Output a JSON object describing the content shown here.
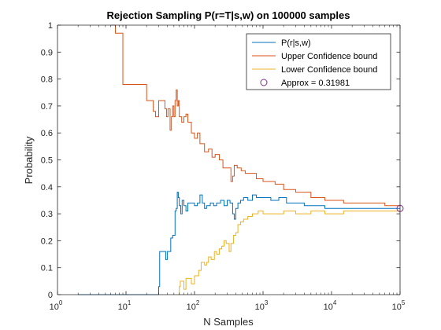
{
  "chart_data": {
    "type": "line",
    "title": "Rejection Sampling P(r=T|s,w) on 100000 samples",
    "xlabel": "N Samples",
    "ylabel": "Probability",
    "xscale": "log",
    "xlim": [
      1,
      100000
    ],
    "ylim": [
      0,
      1
    ],
    "grid": false,
    "legend_position": "top-right",
    "x_ticks": [
      {
        "value": 1,
        "base": "10",
        "exp": "0"
      },
      {
        "value": 10,
        "base": "10",
        "exp": "1"
      },
      {
        "value": 100,
        "base": "10",
        "exp": "2"
      },
      {
        "value": 1000,
        "base": "10",
        "exp": "3"
      },
      {
        "value": 10000,
        "base": "10",
        "exp": "4"
      },
      {
        "value": 100000,
        "base": "10",
        "exp": "5"
      }
    ],
    "y_ticks": [
      {
        "value": 0,
        "label": "0"
      },
      {
        "value": 0.1,
        "label": "0.1"
      },
      {
        "value": 0.2,
        "label": "0.2"
      },
      {
        "value": 0.3,
        "label": "0.3"
      },
      {
        "value": 0.4,
        "label": "0.4"
      },
      {
        "value": 0.5,
        "label": "0.5"
      },
      {
        "value": 0.6,
        "label": "0.6"
      },
      {
        "value": 0.7,
        "label": "0.7"
      },
      {
        "value": 0.8,
        "label": "0.8"
      },
      {
        "value": 0.9,
        "label": "0.9"
      },
      {
        "value": 1,
        "label": "1"
      }
    ],
    "series": [
      {
        "name": "P(r|s,w)",
        "color": "#0072BD",
        "step": true,
        "points": [
          [
            2,
            0
          ],
          [
            28,
            0
          ],
          [
            30,
            0.03
          ],
          [
            31,
            0.16
          ],
          [
            36,
            0.16
          ],
          [
            38,
            0.13
          ],
          [
            40,
            0.16
          ],
          [
            45,
            0.21
          ],
          [
            48,
            0.22
          ],
          [
            52,
            0.31
          ],
          [
            54,
            0.32
          ],
          [
            56,
            0.38
          ],
          [
            58,
            0.36
          ],
          [
            60,
            0.33
          ],
          [
            63,
            0.3
          ],
          [
            66,
            0.35
          ],
          [
            70,
            0.33
          ],
          [
            75,
            0.31
          ],
          [
            80,
            0.34
          ],
          [
            90,
            0.34
          ],
          [
            100,
            0.33
          ],
          [
            110,
            0.34
          ],
          [
            120,
            0.37
          ],
          [
            130,
            0.34
          ],
          [
            140,
            0.32
          ],
          [
            150,
            0.33
          ],
          [
            170,
            0.34
          ],
          [
            190,
            0.33
          ],
          [
            210,
            0.34
          ],
          [
            240,
            0.35
          ],
          [
            270,
            0.33
          ],
          [
            300,
            0.35
          ],
          [
            330,
            0.34
          ],
          [
            360,
            0.3
          ],
          [
            380,
            0.28
          ],
          [
            400,
            0.32
          ],
          [
            430,
            0.34
          ],
          [
            470,
            0.35
          ],
          [
            520,
            0.36
          ],
          [
            600,
            0.35
          ],
          [
            700,
            0.37
          ],
          [
            800,
            0.36
          ],
          [
            1000,
            0.36
          ],
          [
            1300,
            0.35
          ],
          [
            1700,
            0.36
          ],
          [
            2200,
            0.34
          ],
          [
            3000,
            0.34
          ],
          [
            4000,
            0.33
          ],
          [
            6000,
            0.33
          ],
          [
            8000,
            0.32
          ],
          [
            12000,
            0.32
          ],
          [
            20000,
            0.32
          ],
          [
            35000,
            0.32
          ],
          [
            60000,
            0.32
          ],
          [
            100000,
            0.32
          ]
        ]
      },
      {
        "name": "Upper Confidence bound",
        "color": "#D95319",
        "step": true,
        "points": [
          [
            6,
            1
          ],
          [
            7,
            0.97
          ],
          [
            8,
            0.97
          ],
          [
            9,
            0.78
          ],
          [
            10,
            0.78
          ],
          [
            18,
            0.78
          ],
          [
            20,
            0.72
          ],
          [
            24,
            0.72
          ],
          [
            25,
            0.68
          ],
          [
            27,
            0.66
          ],
          [
            30,
            0.72
          ],
          [
            35,
            0.72
          ],
          [
            37,
            0.69
          ],
          [
            39,
            0.66
          ],
          [
            41,
            0.69
          ],
          [
            44,
            0.61
          ],
          [
            46,
            0.66
          ],
          [
            48,
            0.7
          ],
          [
            50,
            0.66
          ],
          [
            52,
            0.72
          ],
          [
            54,
            0.76
          ],
          [
            56,
            0.7
          ],
          [
            58,
            0.72
          ],
          [
            60,
            0.66
          ],
          [
            65,
            0.64
          ],
          [
            70,
            0.66
          ],
          [
            75,
            0.67
          ],
          [
            80,
            0.64
          ],
          [
            90,
            0.6
          ],
          [
            100,
            0.58
          ],
          [
            110,
            0.6
          ],
          [
            120,
            0.56
          ],
          [
            140,
            0.53
          ],
          [
            160,
            0.54
          ],
          [
            180,
            0.51
          ],
          [
            200,
            0.52
          ],
          [
            230,
            0.5
          ],
          [
            260,
            0.47
          ],
          [
            300,
            0.47
          ],
          [
            340,
            0.42
          ],
          [
            360,
            0.44
          ],
          [
            380,
            0.48
          ],
          [
            420,
            0.47
          ],
          [
            480,
            0.46
          ],
          [
            550,
            0.45
          ],
          [
            650,
            0.45
          ],
          [
            800,
            0.43
          ],
          [
            1000,
            0.42
          ],
          [
            1500,
            0.41
          ],
          [
            2000,
            0.39
          ],
          [
            3000,
            0.38
          ],
          [
            5000,
            0.36
          ],
          [
            8000,
            0.35
          ],
          [
            15000,
            0.34
          ],
          [
            30000,
            0.34
          ],
          [
            60000,
            0.33
          ],
          [
            100000,
            0.33
          ]
        ]
      },
      {
        "name": "Lower Confidence bound",
        "color": "#EDB120",
        "step": true,
        "points": [
          [
            58,
            0
          ],
          [
            60,
            0.03
          ],
          [
            62,
            0.05
          ],
          [
            70,
            0.02
          ],
          [
            75,
            0.06
          ],
          [
            85,
            0.06
          ],
          [
            90,
            0.04
          ],
          [
            100,
            0.07
          ],
          [
            115,
            0.09
          ],
          [
            125,
            0.12
          ],
          [
            140,
            0.11
          ],
          [
            150,
            0.12
          ],
          [
            160,
            0.14
          ],
          [
            175,
            0.13
          ],
          [
            195,
            0.16
          ],
          [
            210,
            0.15
          ],
          [
            230,
            0.17
          ],
          [
            250,
            0.18
          ],
          [
            270,
            0.2
          ],
          [
            290,
            0.19
          ],
          [
            320,
            0.16
          ],
          [
            340,
            0.19
          ],
          [
            370,
            0.22
          ],
          [
            400,
            0.23
          ],
          [
            430,
            0.26
          ],
          [
            470,
            0.27
          ],
          [
            520,
            0.28
          ],
          [
            600,
            0.29
          ],
          [
            700,
            0.3
          ],
          [
            850,
            0.31
          ],
          [
            1000,
            0.3
          ],
          [
            1500,
            0.3
          ],
          [
            2000,
            0.31
          ],
          [
            3000,
            0.3
          ],
          [
            5000,
            0.31
          ],
          [
            8000,
            0.3
          ],
          [
            15000,
            0.31
          ],
          [
            30000,
            0.31
          ],
          [
            60000,
            0.31
          ],
          [
            100000,
            0.31
          ]
        ]
      }
    ],
    "markers": [
      {
        "name": "Approx = 0.31981",
        "x": 100000,
        "y": 0.31981,
        "color": "#7E2F8E",
        "shape": "circle"
      }
    ]
  }
}
